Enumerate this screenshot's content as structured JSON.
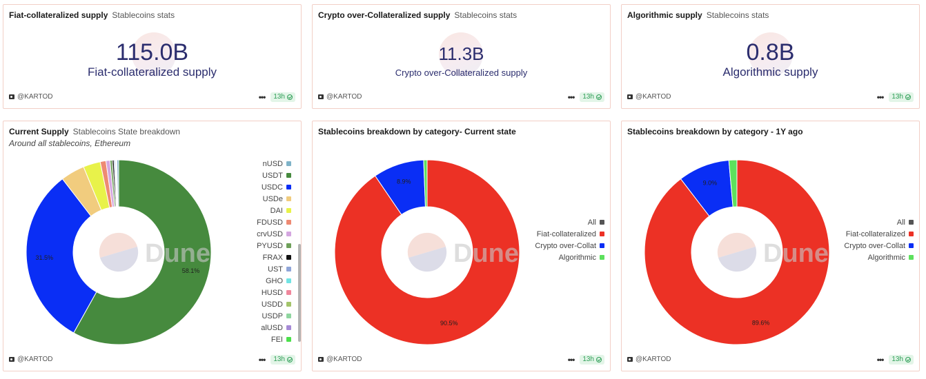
{
  "author": "@KARTOD",
  "age": "13h",
  "counters": [
    {
      "title": "Fiat-collateralized supply",
      "subtitle": "Stablecoins stats",
      "value": "115.0B",
      "label": "Fiat-collateralized supply"
    },
    {
      "title": "Crypto over-Collateralized supply",
      "subtitle": "Stablecoins stats",
      "value": "11.3B",
      "label": "Crypto over-Collateralized supply"
    },
    {
      "title": "Algorithmic supply",
      "subtitle": "Stablecoins stats",
      "value": "0.8B",
      "label": "Algorithmic supply"
    }
  ],
  "watermark": "Dune",
  "chart_data": [
    {
      "type": "pie",
      "title": "Current Supply",
      "subtitle": "Stablecoins State breakdown",
      "description": "Around all stablecoins, Ethereum",
      "legend_position": "right",
      "slices": [
        {
          "name": "nUSD",
          "value": 0.3,
          "color": "#7fb3c8"
        },
        {
          "name": "USDT",
          "value": 58.1,
          "color": "#468a3e",
          "label": "58.1%"
        },
        {
          "name": "USDC",
          "value": 31.5,
          "color": "#0a2ef5",
          "label": "31.5%"
        },
        {
          "name": "USDe",
          "value": 4.2,
          "color": "#f1cc7e"
        },
        {
          "name": "DAI",
          "value": 3.0,
          "color": "#e8f24a"
        },
        {
          "name": "FDUSD",
          "value": 1.0,
          "color": "#ee8a73"
        },
        {
          "name": "crvUSD",
          "value": 0.7,
          "color": "#d4a6e0"
        },
        {
          "name": "PYUSD",
          "value": 0.4,
          "color": "#6ea05a"
        },
        {
          "name": "FRAX",
          "value": 0.3,
          "color": "#111111"
        },
        {
          "name": "UST",
          "value": 0.2,
          "color": "#8fa5d8"
        },
        {
          "name": "GHO",
          "value": 0.1,
          "color": "#72e3e3"
        },
        {
          "name": "HUSD",
          "value": 0.1,
          "color": "#f0879c"
        },
        {
          "name": "USDD",
          "value": 0.05,
          "color": "#a3c46a"
        },
        {
          "name": "USDP",
          "value": 0.03,
          "color": "#8fd6a0"
        },
        {
          "name": "alUSD",
          "value": 0.02,
          "color": "#a68ad6"
        },
        {
          "name": "FEI",
          "value": 0.01,
          "color": "#4be04b"
        }
      ]
    },
    {
      "type": "pie",
      "title": "Stablecoins breakdown by category- Current state",
      "legend_position": "right",
      "legend": [
        {
          "name": "All",
          "color": "#555555"
        },
        {
          "name": "Fiat-collateralized",
          "color": "#ec3125"
        },
        {
          "name": "Crypto over-Collat",
          "color": "#0a2ef5"
        },
        {
          "name": "Algorithmic",
          "color": "#5de05d"
        }
      ],
      "slices": [
        {
          "name": "Fiat-collateralized",
          "value": 90.5,
          "color": "#ec3125",
          "label": "90.5%"
        },
        {
          "name": "Crypto over-Collat",
          "value": 8.9,
          "color": "#0a2ef5",
          "label": "8.9%"
        },
        {
          "name": "Algorithmic",
          "value": 0.6,
          "color": "#5de05d"
        }
      ]
    },
    {
      "type": "pie",
      "title": "Stablecoins breakdown by category - 1Y ago",
      "legend_position": "right",
      "legend": [
        {
          "name": "All",
          "color": "#555555"
        },
        {
          "name": "Fiat-collateralized",
          "color": "#ec3125"
        },
        {
          "name": "Crypto over-Collat",
          "color": "#0a2ef5"
        },
        {
          "name": "Algorithmic",
          "color": "#5de05d"
        }
      ],
      "slices": [
        {
          "name": "Fiat-collateralized",
          "value": 89.6,
          "color": "#ec3125",
          "label": "89.6%"
        },
        {
          "name": "Crypto over-Collat",
          "value": 9.0,
          "color": "#0a2ef5",
          "label": "9.0%"
        },
        {
          "name": "Algorithmic",
          "value": 1.4,
          "color": "#5de05d"
        }
      ]
    }
  ]
}
